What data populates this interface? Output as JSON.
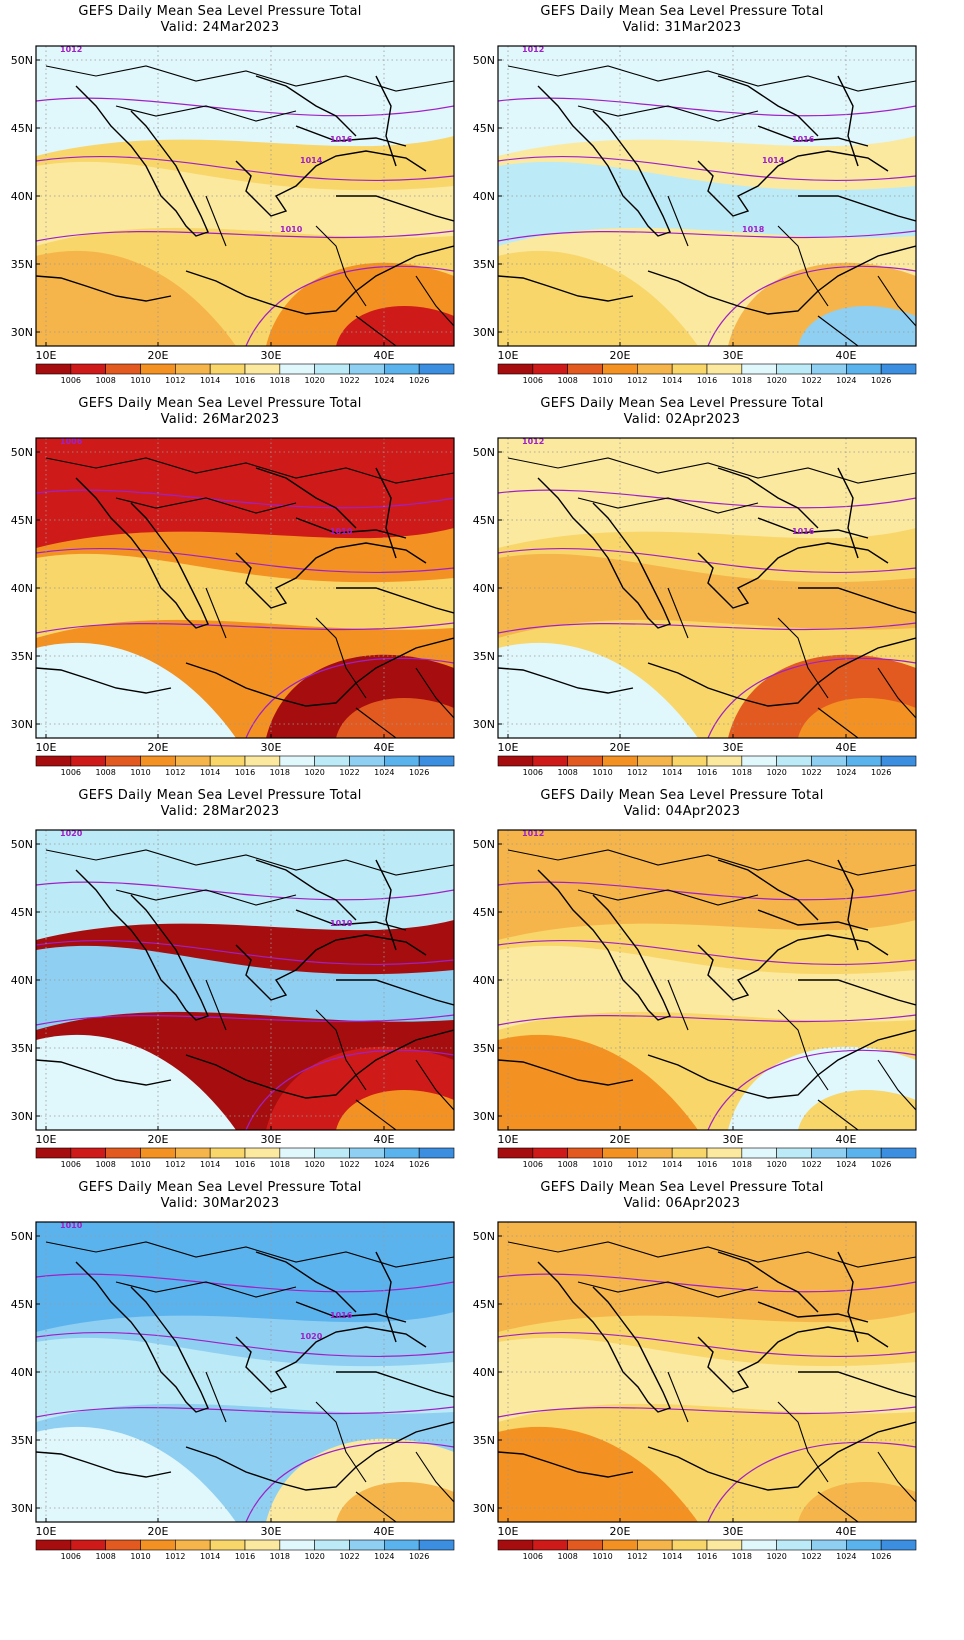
{
  "title": "GEFS Daily Mean Sea Level Pressure Total",
  "panels": [
    {
      "valid": "Valid: 24Mar2023",
      "isobar_labels": [
        "1012",
        "1016",
        "1014",
        "1010"
      ],
      "colors": [
        "#F8D66A",
        "#E0F7FB",
        "#FBE9A0",
        "#F6B54A",
        "#F39122",
        "#CE1A18"
      ]
    },
    {
      "valid": "Valid: 31Mar2023",
      "isobar_labels": [
        "1012",
        "1016",
        "1014",
        "1018"
      ],
      "colors": [
        "#FBE9A0",
        "#E0F7FB",
        "#BCEAF6",
        "#F8D66A",
        "#F6B54A",
        "#8FCFF2"
      ]
    },
    {
      "valid": "Valid: 26Mar2023",
      "isobar_labels": [
        "1006",
        "1010"
      ],
      "colors": [
        "#F39122",
        "#CE1A18",
        "#F8D66A",
        "#E0F7FB",
        "#A60D0E",
        "#E25A1F"
      ]
    },
    {
      "valid": "Valid: 02Apr2023",
      "isobar_labels": [
        "1012",
        "1016"
      ],
      "colors": [
        "#F8D66A",
        "#FBE9A0",
        "#F6B54A",
        "#E0F7FB",
        "#E25A1F",
        "#F39122"
      ]
    },
    {
      "valid": "Valid: 28Mar2023",
      "isobar_labels": [
        "1020",
        "1010"
      ],
      "colors": [
        "#A60D0E",
        "#BCEAF6",
        "#8FCFF2",
        "#E0F7FB",
        "#CE1A18",
        "#F39122"
      ]
    },
    {
      "valid": "Valid: 04Apr2023",
      "isobar_labels": [
        "1012"
      ],
      "colors": [
        "#F8D66A",
        "#F6B54A",
        "#FBE9A0",
        "#F39122",
        "#E0F7FB",
        "#F8D66A"
      ]
    },
    {
      "valid": "Valid: 30Mar2023",
      "isobar_labels": [
        "1010",
        "1016",
        "1020"
      ],
      "colors": [
        "#8FCFF2",
        "#5BB3EE",
        "#BCEAF6",
        "#E0F7FB",
        "#FBE9A0",
        "#F6B54A"
      ]
    },
    {
      "valid": "Valid: 06Apr2023",
      "isobar_labels": [],
      "colors": [
        "#F8D66A",
        "#F6B54A",
        "#FBE9A0",
        "#F39122",
        "#F8D66A",
        "#F6B54A"
      ]
    }
  ],
  "axes": {
    "x_ticks": [
      "10E",
      "20E",
      "30E",
      "40E"
    ],
    "y_ticks": [
      "50N",
      "45N",
      "40N",
      "35N",
      "30N"
    ]
  },
  "colorbar": {
    "labels": [
      "1006",
      "1008",
      "1010",
      "1012",
      "1014",
      "1016",
      "1018",
      "1020",
      "1022",
      "1024",
      "1026"
    ],
    "colors": [
      "#A60D0E",
      "#CE1A18",
      "#E25A1F",
      "#F39122",
      "#F6B54A",
      "#F8D66A",
      "#FBE9A0",
      "#E0F7FB",
      "#BCEAF6",
      "#8FCFF2",
      "#5BB3EE",
      "#3C8FE0"
    ]
  }
}
